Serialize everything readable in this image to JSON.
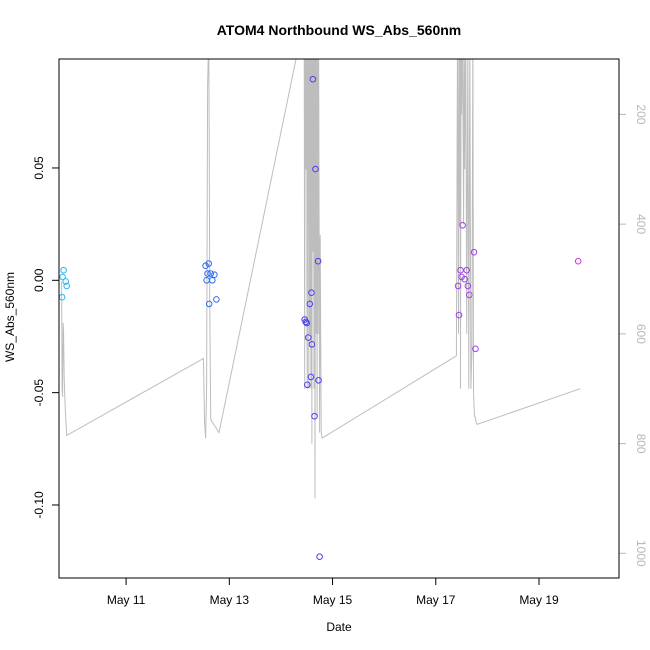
{
  "chart_data": {
    "type": "scatter",
    "title": "ATOM4 Northbound WS_Abs_560nm",
    "xlabel": "Date",
    "ylabel": "WS_Abs_560nm",
    "x_unit": "day of May",
    "xlim": [
      9.7,
      20.55
    ],
    "ylim": [
      -0.1325,
      0.0985
    ],
    "x_ticks": [
      {
        "value": 11,
        "label": "May 11"
      },
      {
        "value": 13,
        "label": "May 13"
      },
      {
        "value": 15,
        "label": "May 15"
      },
      {
        "value": 17,
        "label": "May 17"
      },
      {
        "value": 19,
        "label": "May 19"
      }
    ],
    "y_ticks": [
      {
        "value": -0.1,
        "label": "-0.10"
      },
      {
        "value": -0.05,
        "label": "-0.05"
      },
      {
        "value": 0.0,
        "label": "0.00"
      },
      {
        "value": 0.05,
        "label": "0.05"
      }
    ],
    "y2_inverted": true,
    "y2lim": [
      99,
      1045
    ],
    "y2_ticks": [
      {
        "value": 200,
        "label": "200"
      },
      {
        "value": 400,
        "label": "400"
      },
      {
        "value": 600,
        "label": "600"
      },
      {
        "value": 800,
        "label": "800"
      },
      {
        "value": 1000,
        "label": "1000"
      }
    ],
    "points": [
      {
        "x": 9.76,
        "y": -0.0075,
        "color": "#29b6f6"
      },
      {
        "x": 9.77,
        "y": 0.0015,
        "color": "#29b6f6"
      },
      {
        "x": 9.79,
        "y": 0.0045,
        "color": "#29b6f6"
      },
      {
        "x": 9.83,
        "y": -0.0005,
        "color": "#29b6f6"
      },
      {
        "x": 9.85,
        "y": -0.0025,
        "color": "#29b6f6"
      },
      {
        "x": 12.54,
        "y": 0.0065,
        "color": "#2f6cf0"
      },
      {
        "x": 12.56,
        "y": 0.0,
        "color": "#2f6cf0"
      },
      {
        "x": 12.58,
        "y": 0.003,
        "color": "#2f6cf0"
      },
      {
        "x": 12.6,
        "y": 0.0075,
        "color": "#2f6cf0"
      },
      {
        "x": 12.61,
        "y": -0.0105,
        "color": "#2f6cf0"
      },
      {
        "x": 12.64,
        "y": 0.003,
        "color": "#2f6cf0"
      },
      {
        "x": 12.67,
        "y": 0.0,
        "color": "#2f6cf0"
      },
      {
        "x": 12.71,
        "y": 0.0025,
        "color": "#2f6cf0"
      },
      {
        "x": 12.75,
        "y": -0.0085,
        "color": "#2f6cf0"
      },
      {
        "x": 14.46,
        "y": -0.0175,
        "color": "#4a3ff0"
      },
      {
        "x": 14.48,
        "y": -0.0185,
        "color": "#4a3ff0"
      },
      {
        "x": 14.5,
        "y": -0.019,
        "color": "#4a3ff0"
      },
      {
        "x": 14.51,
        "y": -0.0465,
        "color": "#4a3ff0"
      },
      {
        "x": 14.53,
        "y": -0.0255,
        "color": "#4a3ff0"
      },
      {
        "x": 14.56,
        "y": -0.0105,
        "color": "#4a3ff0"
      },
      {
        "x": 14.58,
        "y": -0.043,
        "color": "#4a3ff0"
      },
      {
        "x": 14.59,
        "y": -0.0055,
        "color": "#4a3ff0"
      },
      {
        "x": 14.6,
        "y": -0.0285,
        "color": "#4a3ff0"
      },
      {
        "x": 14.62,
        "y": 0.0895,
        "color": "#4a3ff0"
      },
      {
        "x": 14.65,
        "y": -0.0605,
        "color": "#4a3ff0"
      },
      {
        "x": 14.67,
        "y": 0.0495,
        "color": "#4a3ff0"
      },
      {
        "x": 14.72,
        "y": 0.0085,
        "color": "#4a3ff0"
      },
      {
        "x": 14.73,
        "y": -0.0445,
        "color": "#4a3ff0"
      },
      {
        "x": 14.75,
        "y": -0.123,
        "color": "#4a3ff0"
      },
      {
        "x": 17.43,
        "y": -0.0025,
        "color": "#a23ef0"
      },
      {
        "x": 17.45,
        "y": -0.0155,
        "color": "#a23ef0"
      },
      {
        "x": 17.48,
        "y": 0.0045,
        "color": "#a23ef0"
      },
      {
        "x": 17.5,
        "y": 0.0015,
        "color": "#a23ef0"
      },
      {
        "x": 17.52,
        "y": 0.0245,
        "color": "#a23ef0"
      },
      {
        "x": 17.56,
        "y": 0.0005,
        "color": "#a23ef0"
      },
      {
        "x": 17.6,
        "y": 0.0045,
        "color": "#a23ef0"
      },
      {
        "x": 17.62,
        "y": -0.0025,
        "color": "#a23ef0"
      },
      {
        "x": 17.65,
        "y": -0.0065,
        "color": "#a23ef0"
      },
      {
        "x": 17.74,
        "y": 0.0125,
        "color": "#a23ef0"
      },
      {
        "x": 17.77,
        "y": -0.0305,
        "color": "#a23ef0"
      },
      {
        "x": 19.76,
        "y": 0.0085,
        "color": "#d633d9"
      }
    ],
    "secondary_line": {
      "color": "#bdbdbd",
      "x": [
        9.75,
        9.76,
        9.77,
        9.78,
        9.79,
        9.8,
        9.81,
        9.82,
        9.85,
        12.5,
        12.52,
        12.54,
        12.56,
        12.58,
        12.6,
        12.61,
        12.615,
        12.62,
        12.625,
        12.63,
        12.635,
        12.64,
        12.66,
        12.7,
        12.8,
        14.4,
        14.45,
        14.46,
        14.47,
        14.48,
        14.485,
        14.49,
        14.495,
        14.5,
        14.505,
        14.51,
        14.52,
        14.53,
        14.535,
        14.54,
        14.55,
        14.56,
        14.565,
        14.57,
        14.58,
        14.59,
        14.6,
        14.61,
        14.62,
        14.63,
        14.64,
        14.65,
        14.66,
        14.67,
        14.68,
        14.69,
        14.7,
        14.71,
        14.72,
        14.73,
        14.74,
        14.75,
        14.76,
        14.78,
        14.8,
        17.4,
        17.42,
        17.44,
        17.45,
        17.46,
        17.47,
        17.48,
        17.49,
        17.5,
        17.52,
        17.54,
        17.55,
        17.56,
        17.58,
        17.6,
        17.62,
        17.64,
        17.66,
        17.68,
        17.7,
        17.72,
        17.73,
        17.74,
        17.75,
        17.76,
        17.77,
        17.78,
        17.8,
        19.8
      ],
      "y": [
        505,
        700,
        715,
        580,
        600,
        680,
        710,
        735,
        785,
        645,
        760,
        790,
        700,
        150,
        50,
        240,
        400,
        520,
        600,
        650,
        700,
        755,
        760,
        765,
        780,
        50,
        50,
        700,
        80,
        50,
        300,
        50,
        90,
        50,
        600,
        700,
        50,
        400,
        50,
        700,
        50,
        600,
        200,
        50,
        700,
        50,
        800,
        50,
        450,
        50,
        700,
        50,
        900,
        50,
        600,
        80,
        750,
        50,
        600,
        50,
        400,
        780,
        420,
        780,
        790,
        640,
        50,
        600,
        50,
        400,
        50,
        700,
        50,
        200,
        50,
        400,
        50,
        300,
        50,
        600,
        70,
        700,
        50,
        700,
        630,
        50,
        700,
        730,
        750,
        750,
        755,
        760,
        765,
        700
      ]
    }
  }
}
